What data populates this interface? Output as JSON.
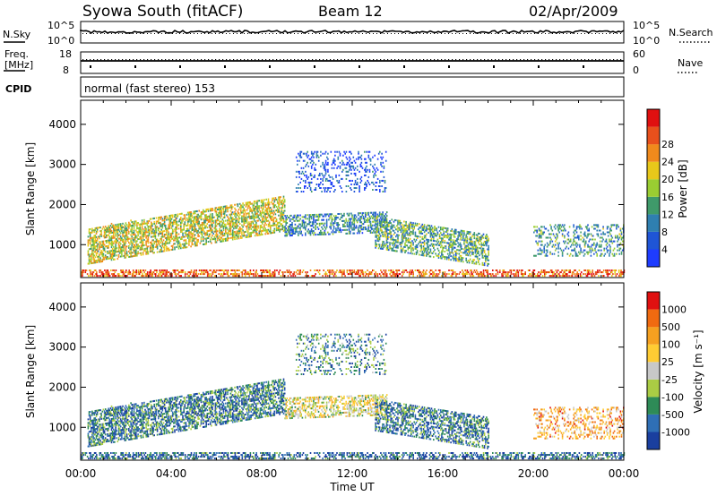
{
  "header": {
    "station": "Syowa South (fitACF)",
    "beam": "Beam 12",
    "date": "02/Apr/2009"
  },
  "panels": {
    "nsky_label": "N.Sky",
    "nsearch_label": "N.Search",
    "nsky_ticks": [
      "10^5",
      "10^0"
    ],
    "nsearch_ticks": [
      "10^5",
      "10^0"
    ],
    "freq_label_line1": "Freq.",
    "freq_label_line2": "[MHz]",
    "freq_ticks": [
      "18",
      "8"
    ],
    "nave_label": "Nave",
    "nave_ticks": [
      "60",
      "0"
    ],
    "cpid_label": "CPID",
    "cpid_text": "normal (fast stereo) 153"
  },
  "colors": {
    "power": [
      "#1e3cff",
      "#1f55d6",
      "#2f7fb0",
      "#3f9a6a",
      "#9acd32",
      "#e8c81a",
      "#f08a1c",
      "#e8501c",
      "#e01010"
    ],
    "velocity": [
      "#e01010",
      "#f06a10",
      "#f5a020",
      "#ffcc33",
      "#c8c8c8",
      "#aacc44",
      "#2e8b57",
      "#2f6fb5",
      "#1a3f9f"
    ],
    "ground": "#c8c8c8"
  },
  "chart_data": [
    {
      "type": "heatmap",
      "name": "power",
      "xlabel": "Time UT",
      "ylabel": "Slant Range [km]",
      "xlim": [
        0,
        24
      ],
      "ylim": [
        180,
        4600
      ],
      "yticks": [
        1000,
        2000,
        3000,
        4000
      ],
      "xtick_labels": [
        "00:00",
        "04:00",
        "08:00",
        "12:00",
        "16:00",
        "20:00",
        "00:00"
      ],
      "colorbar_label": "Power [dB]",
      "colorbar_range": [
        0,
        32
      ],
      "colorbar_ticks": [
        "4",
        "8",
        "12",
        "16",
        "20",
        "24",
        "28"
      ],
      "echo_regions": [
        {
          "t0": 0.3,
          "t1": 9.0,
          "r0": 500,
          "r1": 1400,
          "slope": 95,
          "level": 0.55,
          "density": 0.55
        },
        {
          "t0": 9.0,
          "t1": 13.5,
          "r0": 1200,
          "r1": 1700,
          "slope": 20,
          "level": 0.3,
          "density": 0.45
        },
        {
          "t0": 13.0,
          "t1": 18.0,
          "r0": 900,
          "r1": 1700,
          "slope": -90,
          "level": 0.4,
          "density": 0.45
        },
        {
          "t0": 9.5,
          "t1": 13.5,
          "r0": 2300,
          "r1": 3300,
          "slope": 0,
          "level": 0.15,
          "density": 0.2
        },
        {
          "t0": 20.0,
          "t1": 24.0,
          "r0": 700,
          "r1": 1500,
          "slope": 0,
          "level": 0.35,
          "density": 0.25
        },
        {
          "t0": 0.0,
          "t1": 24.0,
          "r0": 200,
          "r1": 350,
          "slope": 0,
          "level": 0.8,
          "density": 0.45
        }
      ]
    },
    {
      "type": "heatmap",
      "name": "velocity",
      "xlabel": "Time UT",
      "ylabel": "Slant Range [km]",
      "xlim": [
        0,
        24
      ],
      "ylim": [
        180,
        4600
      ],
      "yticks": [
        1000,
        2000,
        3000,
        4000
      ],
      "xtick_labels": [
        "00:00",
        "04:00",
        "08:00",
        "12:00",
        "16:00",
        "20:00",
        "00:00"
      ],
      "colorbar_label": "Velocity [m s⁻¹]",
      "colorbar_ticks": [
        "1000",
        "500",
        "100",
        "25",
        "-25",
        "-100",
        "-500",
        "-1000"
      ],
      "echo_regions": [
        {
          "t0": 0.3,
          "t1": 9.0,
          "r0": 500,
          "r1": 1400,
          "slope": 95,
          "level": 0.2,
          "density": 0.55
        },
        {
          "t0": 9.0,
          "t1": 13.5,
          "r0": 1200,
          "r1": 1700,
          "slope": 20,
          "level": 0.5,
          "density": 0.45
        },
        {
          "t0": 13.0,
          "t1": 18.0,
          "r0": 900,
          "r1": 1700,
          "slope": -90,
          "level": 0.2,
          "density": 0.45
        },
        {
          "t0": 9.5,
          "t1": 13.5,
          "r0": 2300,
          "r1": 3300,
          "slope": 0,
          "level": 0.25,
          "density": 0.2
        },
        {
          "t0": 20.0,
          "t1": 24.0,
          "r0": 700,
          "r1": 1500,
          "slope": 0,
          "level": 0.7,
          "density": 0.25
        },
        {
          "t0": 0.0,
          "t1": 24.0,
          "r0": 200,
          "r1": 350,
          "slope": 0,
          "level": 0.15,
          "density": 0.45
        }
      ]
    }
  ]
}
